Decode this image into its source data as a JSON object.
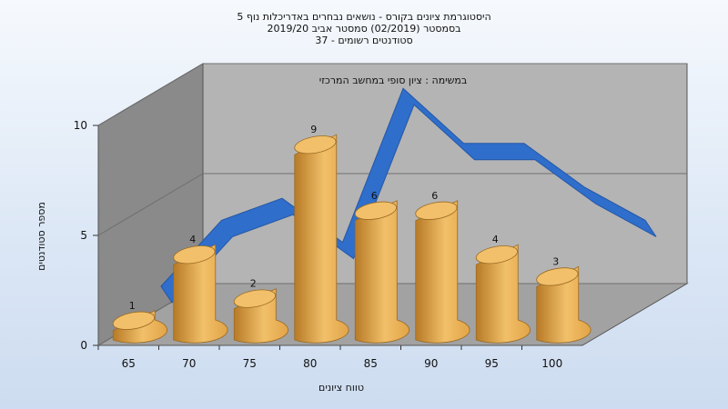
{
  "chart_data": {
    "type": "bar",
    "title_lines": [
      "היסטוגרמת ציונים בקורס - נושאים נבחרים באדריכלות נוף 5",
      "בסמסטר  (02/2019)  סמסטר אביב 2019/20",
      "סטודנטים רשומים - 37"
    ],
    "subtitle": "במשימה : ציון סופי במחשב המרכזי",
    "xlabel": "טווח ציונים",
    "ylabel": "מספר סטודנטים",
    "categories": [
      "65",
      "70",
      "75",
      "80",
      "85",
      "90",
      "95",
      "100"
    ],
    "series": [
      {
        "values": [
          1,
          4,
          2,
          9,
          6,
          6,
          4,
          3
        ]
      }
    ],
    "ribbon_values": [
      1,
      4,
      5,
      3,
      10,
      7.5,
      7.5,
      5.5,
      4
    ],
    "data_labels": [
      "1",
      "4",
      "2",
      "9",
      "6",
      "6",
      "4",
      "3"
    ],
    "ylim": [
      0,
      10
    ],
    "yticks": [
      "0",
      "5",
      "10"
    ],
    "grid": true,
    "colors": {
      "bar": "#e2a447",
      "bar_dark": "#b77a26",
      "bar_top": "#f2c06a",
      "ribbon": "#2f6ecb",
      "ribbon_dark": "#2457a6",
      "wall_back": "#b4b4b4",
      "wall_side": "#8a8a8a",
      "floor": "#a2a2a2"
    }
  }
}
